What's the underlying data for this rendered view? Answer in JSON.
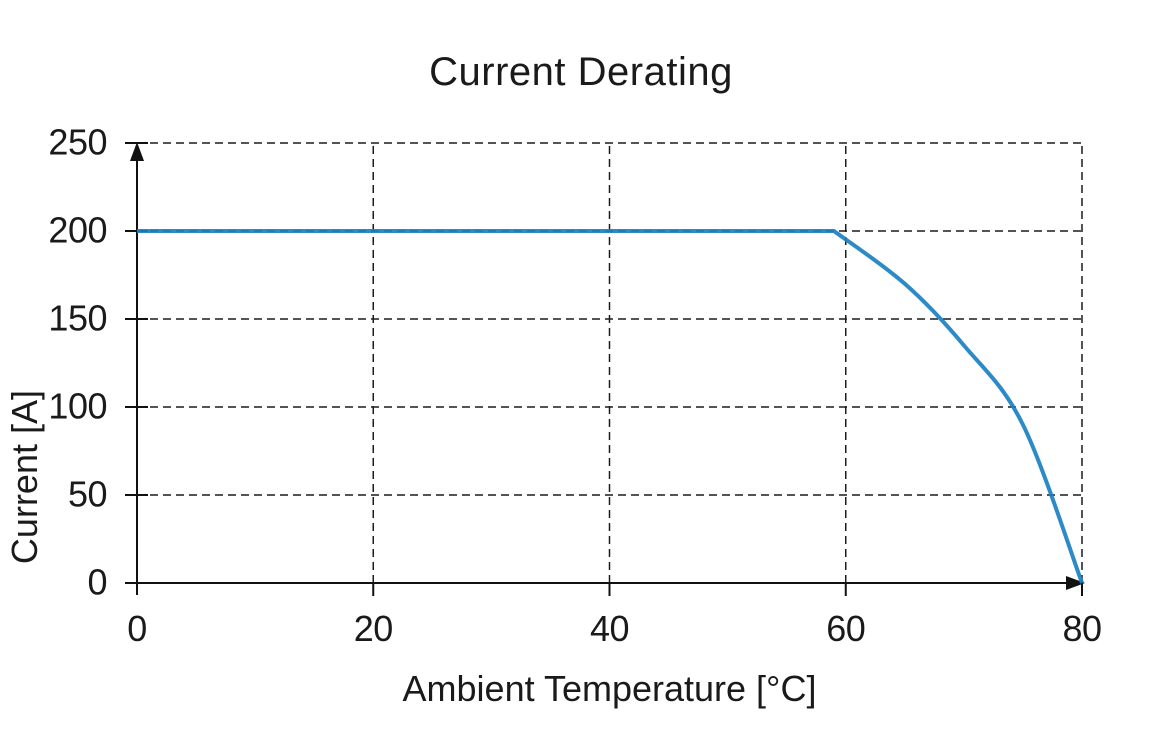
{
  "chart_data": {
    "type": "line",
    "title": "Current Derating",
    "xlabel": "Ambient Temperature [°C]",
    "ylabel": "Current [A]",
    "xlim": [
      0,
      80
    ],
    "ylim": [
      0,
      250
    ],
    "xticks": [
      0,
      20,
      40,
      60,
      80
    ],
    "yticks": [
      0,
      50,
      100,
      150,
      200,
      250
    ],
    "grid": "dashed",
    "legend": "none",
    "axis_arrows": true,
    "series": [
      {
        "color": "#1a80c2",
        "points": [
          [
            0,
            200
          ],
          [
            59,
            200
          ],
          [
            65,
            170
          ],
          [
            70,
            135
          ],
          [
            75,
            90
          ],
          [
            80,
            0
          ]
        ]
      }
    ]
  }
}
